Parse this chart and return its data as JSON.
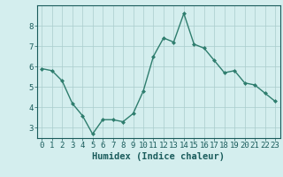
{
  "x": [
    0,
    1,
    2,
    3,
    4,
    5,
    6,
    7,
    8,
    9,
    10,
    11,
    12,
    13,
    14,
    15,
    16,
    17,
    18,
    19,
    20,
    21,
    22,
    23
  ],
  "y": [
    5.9,
    5.8,
    5.3,
    4.2,
    3.6,
    2.7,
    3.4,
    3.4,
    3.3,
    3.7,
    4.8,
    6.5,
    7.4,
    7.2,
    8.6,
    7.1,
    6.9,
    6.3,
    5.7,
    5.8,
    5.2,
    5.1,
    4.7,
    4.3
  ],
  "xlabel": "Humidex (Indice chaleur)",
  "ylim": [
    2.5,
    9.0
  ],
  "xlim": [
    -0.5,
    23.5
  ],
  "yticks": [
    3,
    4,
    5,
    6,
    7,
    8
  ],
  "xticks": [
    0,
    1,
    2,
    3,
    4,
    5,
    6,
    7,
    8,
    9,
    10,
    11,
    12,
    13,
    14,
    15,
    16,
    17,
    18,
    19,
    20,
    21,
    22,
    23
  ],
  "line_color": "#2e7d6e",
  "marker": "D",
  "marker_size": 2.0,
  "bg_color": "#d4eeee",
  "grid_color": "#aacccc",
  "tick_label_color": "#1a5c5c",
  "xlabel_color": "#1a5c5c",
  "xlabel_fontsize": 7.5,
  "tick_fontsize": 6.5,
  "line_width": 1.0
}
